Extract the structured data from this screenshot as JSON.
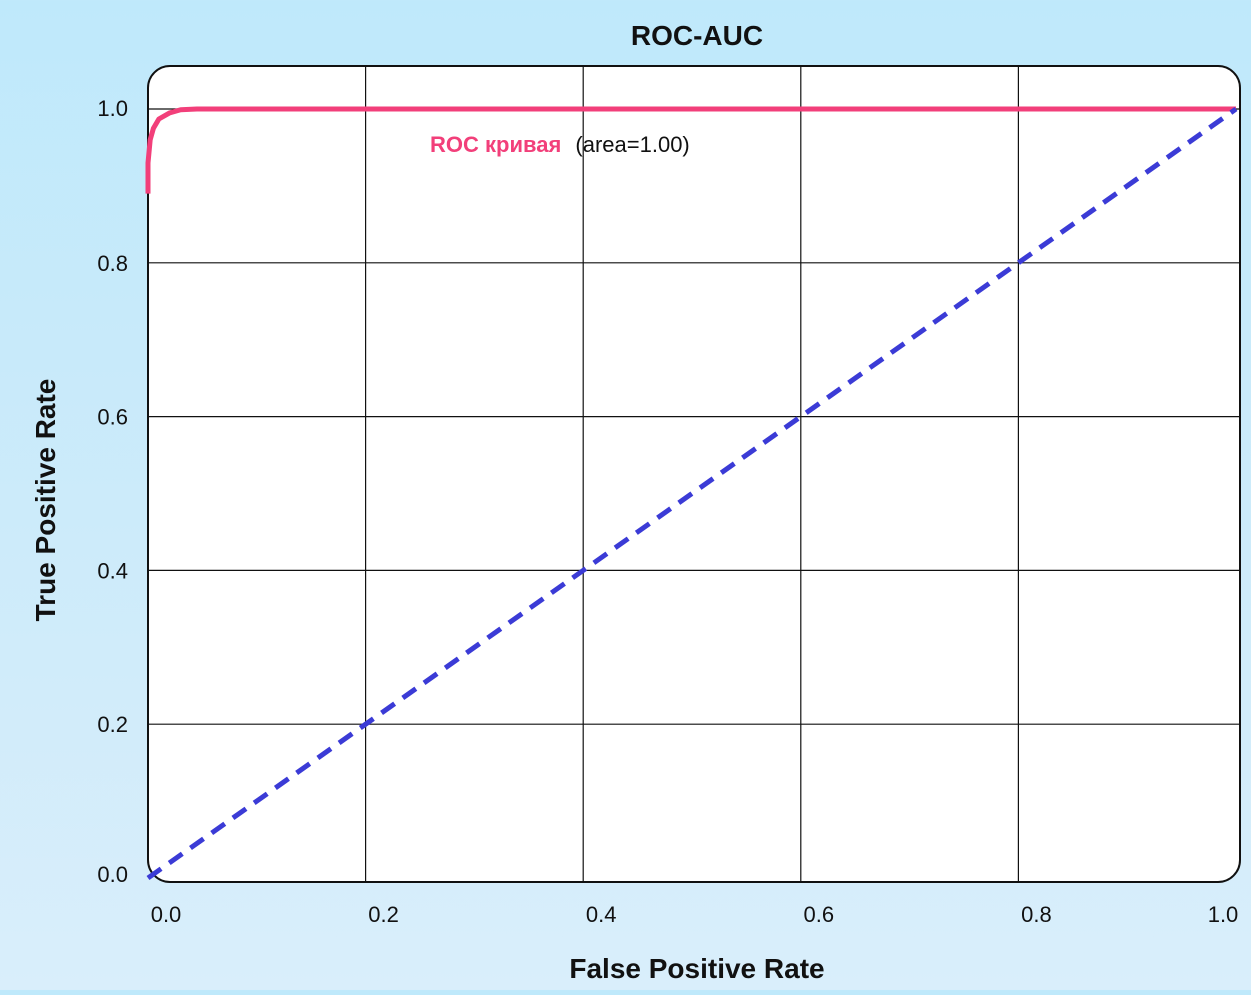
{
  "chart_data": {
    "type": "line",
    "title": "ROC-AUC",
    "xlabel": "False Positive Rate",
    "ylabel": "True Positive Rate",
    "xlim": [
      0.0,
      1.0
    ],
    "ylim": [
      0.0,
      1.0
    ],
    "x_ticks": [
      "0.0",
      "0.2",
      "0.4",
      "0.6",
      "0.8",
      "1.0"
    ],
    "y_ticks": [
      "0.0",
      "0.2",
      "0.4",
      "0.6",
      "0.8",
      "1.0"
    ],
    "grid": true,
    "series": [
      {
        "name_label": "ROC кривая",
        "name_suffix": "(area=1.00)",
        "color": "#f23f7a",
        "style": "solid",
        "x": [
          0.0,
          0.0,
          0.002,
          0.005,
          0.01,
          0.02,
          0.03,
          0.045,
          1.0
        ],
        "y": [
          0.89,
          0.93,
          0.96,
          0.975,
          0.987,
          0.995,
          0.999,
          1.0,
          1.0
        ]
      },
      {
        "color": "#3b3bd6",
        "style": "dashed",
        "x": [
          0.0,
          1.0
        ],
        "y": [
          0.0,
          1.0
        ]
      }
    ]
  }
}
